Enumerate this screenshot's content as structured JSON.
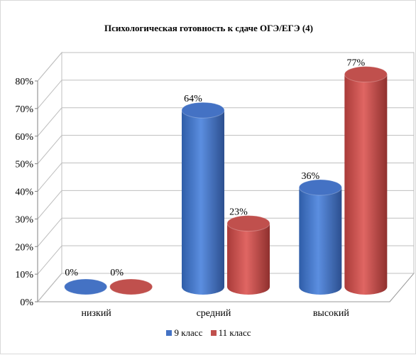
{
  "chart_data": {
    "type": "bar",
    "title": "Психологическая готовность к сдаче ОГЭ/ЕГЭ (4)",
    "categories": [
      "низкий",
      "средний",
      "высокий"
    ],
    "series": [
      {
        "name": "9 класс",
        "values": [
          0,
          64,
          36
        ],
        "color": "#4472C4"
      },
      {
        "name": "11 класс",
        "values": [
          0,
          23,
          77
        ],
        "color": "#C0504D"
      }
    ],
    "data_labels": [
      [
        "0%",
        "64%",
        "36%"
      ],
      [
        "0%",
        "23%",
        "77%"
      ]
    ],
    "yticks": [
      "0%",
      "10%",
      "20%",
      "30%",
      "40%",
      "50%",
      "60%",
      "70%",
      "80%"
    ],
    "ylim": [
      0,
      80
    ],
    "xlabel": "",
    "ylabel": "",
    "grid": true,
    "style": "3d-cylinder",
    "legend_position": "bottom"
  }
}
